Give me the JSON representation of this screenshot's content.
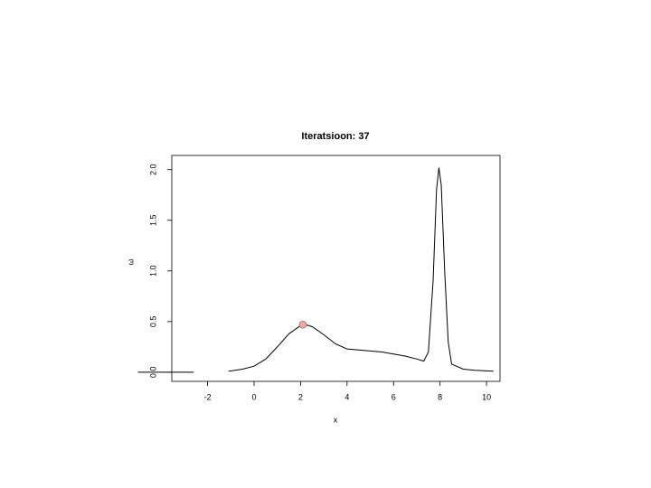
{
  "chart_data": {
    "type": "line",
    "title": "Iteratsioon: 37",
    "xlabel": "x",
    "ylabel": "ω",
    "xlim": [
      -3.54,
      10.58
    ],
    "ylim": [
      -0.09,
      2.14
    ],
    "xticks": [
      -2,
      0,
      2,
      4,
      6,
      8,
      10
    ],
    "yticks": [
      {
        "value": 0,
        "label": "0.0"
      },
      {
        "value": 0.5,
        "label": "0.5"
      },
      {
        "value": 1,
        "label": "1.0"
      },
      {
        "value": 1.5,
        "label": "1.5"
      },
      {
        "value": 2,
        "label": "2.0"
      }
    ],
    "series": [
      {
        "color": "#000000",
        "x": [
          -5,
          -2.6,
          null,
          -1.1,
          -0.5,
          0,
          0.5,
          1,
          1.5,
          2,
          2.2,
          2.5,
          3,
          3.5,
          4,
          4.5,
          5,
          5.5,
          6,
          6.5,
          7,
          7.3,
          7.5,
          7.7,
          7.85,
          7.95,
          8.05,
          8.2,
          8.35,
          8.5,
          9,
          9.5,
          10.3
        ],
        "values": [
          0,
          0,
          null,
          0.01,
          0.03,
          0.06,
          0.13,
          0.25,
          0.38,
          0.46,
          0.47,
          0.45,
          0.37,
          0.28,
          0.23,
          0.22,
          0.21,
          0.2,
          0.18,
          0.16,
          0.13,
          0.11,
          0.2,
          0.9,
          1.8,
          2.02,
          1.85,
          1.0,
          0.3,
          0.08,
          0.03,
          0.02,
          0.01
        ]
      }
    ],
    "points": [
      {
        "color": "#f4a6a6",
        "x": 2.1,
        "y": 0.47
      }
    ]
  }
}
